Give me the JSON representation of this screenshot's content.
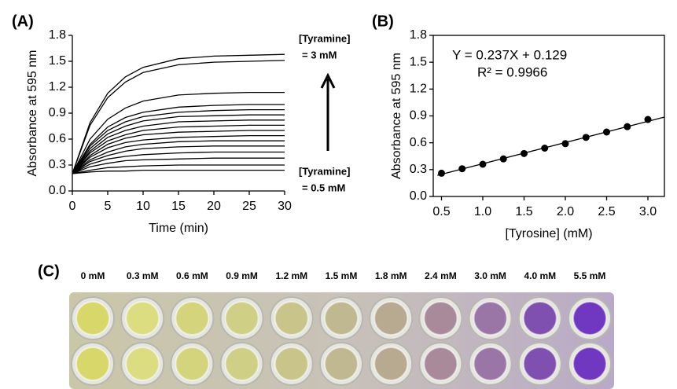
{
  "chart_data": [
    {
      "type": "line",
      "title": "(A)",
      "xlabel": "Time (min)",
      "ylabel": "Absorbance at 595 nm",
      "x": [
        0,
        2.5,
        5,
        7.5,
        10,
        15,
        20,
        25,
        30
      ],
      "series": [
        {
          "color": "#000000",
          "values": [
            0.2,
            0.79,
            1.13,
            1.32,
            1.43,
            1.53,
            1.56,
            1.57,
            1.58
          ]
        },
        {
          "color": "#000000",
          "values": [
            0.2,
            0.76,
            1.08,
            1.26,
            1.37,
            1.46,
            1.49,
            1.5,
            1.51
          ]
        },
        {
          "color": "#000000",
          "values": [
            0.2,
            0.6,
            0.83,
            0.96,
            1.04,
            1.11,
            1.13,
            1.14,
            1.14
          ]
        },
        {
          "color": "#000000",
          "values": [
            0.2,
            0.54,
            0.74,
            0.85,
            0.91,
            0.97,
            0.99,
            1.0,
            1.0
          ]
        },
        {
          "color": "#000000",
          "values": [
            0.2,
            0.52,
            0.7,
            0.8,
            0.86,
            0.91,
            0.93,
            0.94,
            0.94
          ]
        },
        {
          "color": "#000000",
          "values": [
            0.2,
            0.49,
            0.66,
            0.75,
            0.81,
            0.86,
            0.87,
            0.88,
            0.88
          ]
        },
        {
          "color": "#000000",
          "values": [
            0.2,
            0.46,
            0.62,
            0.7,
            0.75,
            0.8,
            0.81,
            0.82,
            0.82
          ]
        },
        {
          "color": "#000000",
          "values": [
            0.2,
            0.44,
            0.58,
            0.65,
            0.7,
            0.74,
            0.75,
            0.76,
            0.76
          ]
        },
        {
          "color": "#000000",
          "values": [
            0.2,
            0.41,
            0.54,
            0.61,
            0.65,
            0.68,
            0.69,
            0.7,
            0.7
          ]
        },
        {
          "color": "#000000",
          "values": [
            0.2,
            0.39,
            0.5,
            0.56,
            0.59,
            0.62,
            0.63,
            0.64,
            0.64
          ]
        },
        {
          "color": "#000000",
          "values": [
            0.2,
            0.36,
            0.45,
            0.51,
            0.54,
            0.57,
            0.58,
            0.58,
            0.58
          ]
        },
        {
          "color": "#000000",
          "values": [
            0.2,
            0.34,
            0.41,
            0.46,
            0.49,
            0.51,
            0.52,
            0.52,
            0.52
          ]
        },
        {
          "color": "#000000",
          "values": [
            0.2,
            0.31,
            0.37,
            0.4,
            0.42,
            0.44,
            0.45,
            0.45,
            0.45
          ]
        },
        {
          "color": "#000000",
          "values": [
            0.2,
            0.28,
            0.32,
            0.35,
            0.36,
            0.37,
            0.38,
            0.38,
            0.38
          ]
        },
        {
          "color": "#000000",
          "values": [
            0.2,
            0.24,
            0.27,
            0.28,
            0.29,
            0.3,
            0.3,
            0.3,
            0.3
          ]
        },
        {
          "color": "#000000",
          "values": [
            0.2,
            0.22,
            0.23,
            0.23,
            0.24,
            0.24,
            0.24,
            0.24,
            0.24
          ]
        }
      ],
      "xlim": [
        0,
        30
      ],
      "xticks": [
        0,
        5,
        10,
        15,
        20,
        25,
        30
      ],
      "ylim": [
        0,
        1.8
      ],
      "yticks": [
        {
          "value": 0,
          "label": "0.0"
        },
        0.3,
        0.6,
        0.9,
        1.2,
        1.5,
        1.8
      ],
      "annotations": [
        "[Tyramine]",
        "= 3 mM",
        "[Tyramine]",
        "= 0.5 mM"
      ]
    },
    {
      "type": "scatter",
      "title": "(B)",
      "xlabel": "[Tyrosine] (mM)",
      "ylabel": "Absorbance at 595 nm",
      "series": [
        {
          "color": "#000000",
          "x": [
            0.5,
            0.75,
            1.0,
            1.25,
            1.5,
            1.75,
            2.0,
            2.25,
            2.5,
            2.75,
            3.0
          ],
          "values": [
            0.26,
            0.31,
            0.36,
            0.42,
            0.48,
            0.54,
            0.59,
            0.66,
            0.72,
            0.78,
            0.86
          ]
        }
      ],
      "fit_line": {
        "x": [
          0.45,
          3.2
        ],
        "values": [
          0.236,
          0.887
        ]
      },
      "xlim": [
        0.4,
        3.2
      ],
      "xticks": [
        0.5,
        {
          "value": 1,
          "label": "1.0"
        },
        1.5,
        {
          "value": 2,
          "label": "2.0"
        },
        2.5,
        {
          "value": 3,
          "label": "3.0"
        }
      ],
      "ylim": [
        0,
        1.8
      ],
      "yticks": [
        {
          "value": 0,
          "label": "0.0"
        },
        0.3,
        0.6,
        0.9,
        1.2,
        1.5,
        1.8
      ],
      "annotations": [
        "Y = 0.237X + 0.129",
        "R² = 0.9966"
      ]
    }
  ],
  "panel_c": {
    "label": "(C)",
    "concentrations": [
      "0 mM",
      "0.3 mM",
      "0.6 mM",
      "0.9 mM",
      "1.2 mM",
      "1.5 mM",
      "1.8 mM",
      "2.4 mM",
      "3.0 mM",
      "4.0 mM",
      "5.5 mM"
    ]
  }
}
